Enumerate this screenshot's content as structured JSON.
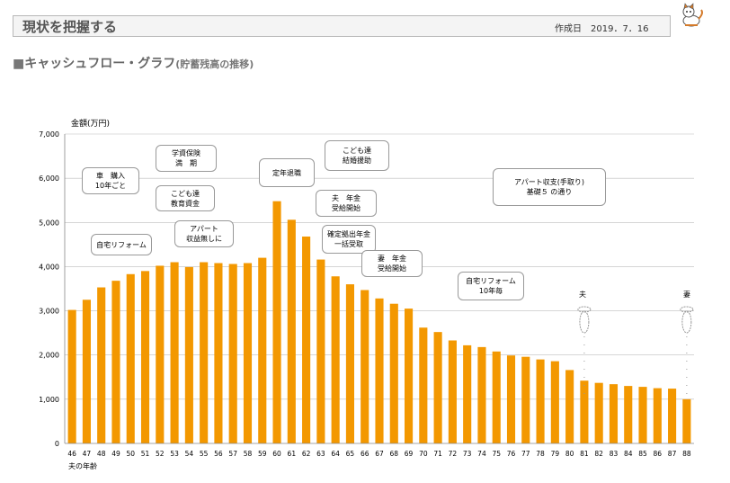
{
  "header": {
    "title": "現状を把握する",
    "date": "作成日　2019．7．16"
  },
  "section": {
    "square": "■",
    "title": "キャッシュフロー・グラフ",
    "subtitle": "(貯蓄残高の推移)"
  },
  "colors": {
    "bar": "#f39800",
    "grid": "#bdbdbd",
    "axis": "#888888"
  },
  "icons": {
    "mascot": "mascot-icon"
  },
  "chart_data": {
    "type": "bar",
    "ylabel": "金額(万円)",
    "xlabel": "夫の年齢",
    "ylim": [
      0,
      7000
    ],
    "yticks": [
      "0",
      "1,000",
      "2,000",
      "3,000",
      "4,000",
      "5,000",
      "6,000",
      "7,000"
    ],
    "grid": true,
    "categories": [
      "46",
      "47",
      "48",
      "49",
      "50",
      "51",
      "52",
      "53",
      "54",
      "55",
      "56",
      "57",
      "58",
      "59",
      "60",
      "61",
      "62",
      "63",
      "64",
      "65",
      "66",
      "67",
      "68",
      "69",
      "70",
      "71",
      "72",
      "73",
      "74",
      "75",
      "76",
      "77",
      "78",
      "79",
      "80",
      "81",
      "82",
      "83",
      "84",
      "85",
      "86",
      "87",
      "88"
    ],
    "values": [
      3020,
      3250,
      3530,
      3680,
      3830,
      3900,
      4020,
      4100,
      3990,
      4100,
      4080,
      4060,
      4080,
      4200,
      5480,
      5060,
      4680,
      4160,
      3780,
      3600,
      3470,
      3280,
      3160,
      3050,
      2620,
      2520,
      2330,
      2220,
      2180,
      2080,
      1990,
      1960,
      1900,
      1860,
      1660,
      1420,
      1370,
      1340,
      1300,
      1280,
      1250,
      1240,
      1000
    ],
    "annotations": [
      {
        "text": "車　購入\n10年ごと",
        "category": "50"
      },
      {
        "text": "学資保険\n満　期",
        "category": "53"
      },
      {
        "text": "こども達\n教育資金",
        "category": "53"
      },
      {
        "text": "自宅リフォーム",
        "category": "49"
      },
      {
        "text": "アパート\n収益無しに",
        "category": "54"
      },
      {
        "text": "定年退職",
        "category": "60"
      },
      {
        "text": "こども達\n結婚援助",
        "category": "65"
      },
      {
        "text": "夫　年金\n受給開始",
        "category": "65"
      },
      {
        "text": "確定拠出年金\n一括受取",
        "category": "65"
      },
      {
        "text": "妻　年金\n受給開始",
        "category": "66"
      },
      {
        "text": "アパート収支(手取り)\n基礎５ の通り",
        "category": "82"
      },
      {
        "text": "自宅リフォーム\n10年毎",
        "category": "76"
      },
      {
        "text": "夫",
        "category": "81"
      },
      {
        "text": "妻",
        "category": "88"
      }
    ]
  }
}
